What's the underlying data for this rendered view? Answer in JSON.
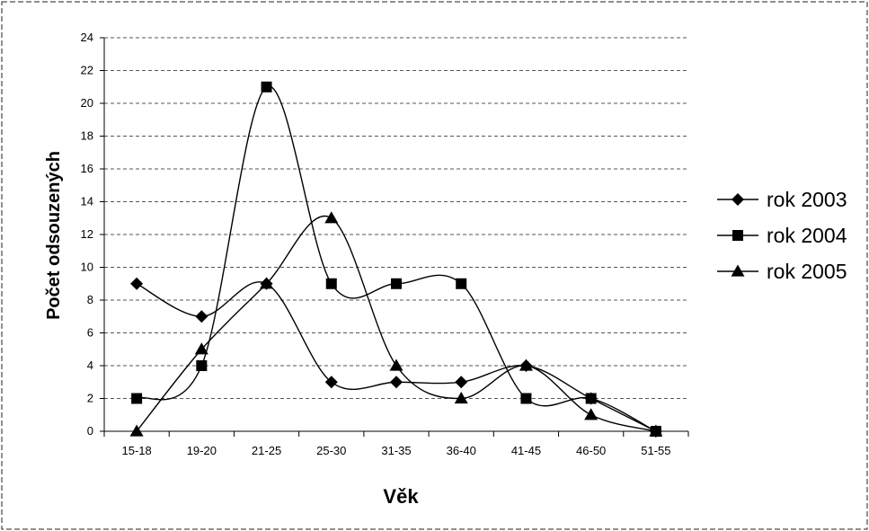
{
  "chart_data": {
    "type": "line",
    "title": "",
    "xlabel": "Věk",
    "ylabel": "Počet odsouzených",
    "categories": [
      "15-18",
      "19-20",
      "21-25",
      "25-30",
      "31-35",
      "36-40",
      "41-45",
      "46-50",
      "51-55"
    ],
    "ylim": [
      0,
      24
    ],
    "yticks": [
      0,
      2,
      4,
      6,
      8,
      10,
      12,
      14,
      16,
      18,
      20,
      22,
      24
    ],
    "grid": "horizontal dashed",
    "legend_position": "right",
    "series": [
      {
        "name": "rok 2003",
        "marker": "diamond",
        "values": [
          9,
          7,
          9,
          3,
          3,
          3,
          4,
          2,
          0
        ]
      },
      {
        "name": "rok 2004",
        "marker": "square",
        "values": [
          2,
          4,
          21,
          9,
          9,
          9,
          2,
          2,
          0
        ]
      },
      {
        "name": "rok 2005",
        "marker": "triangle",
        "values": [
          0,
          5,
          9,
          13,
          4,
          2,
          4,
          1,
          0
        ]
      }
    ],
    "colors": {
      "line": "#000000",
      "grid": "#555555",
      "background": "#ffffff"
    }
  }
}
